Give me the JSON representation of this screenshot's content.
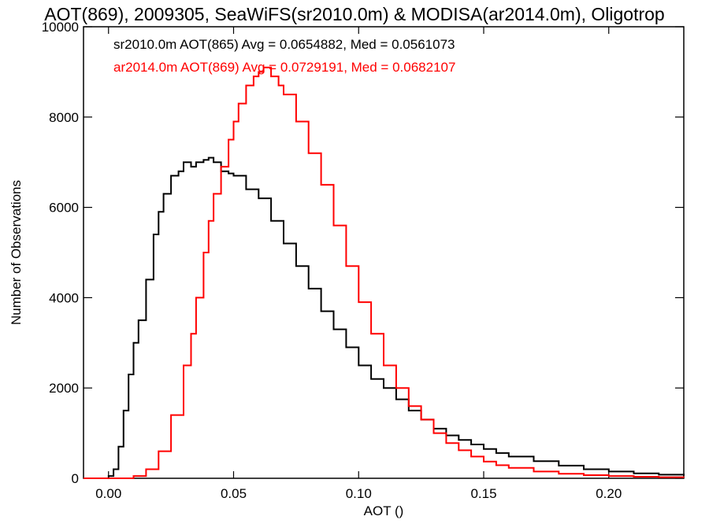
{
  "chart_data": {
    "type": "line",
    "title": "AOT(869), 2009305, SeaWiFS(sr2010.0m) & MODISA(ar2014.0m), Oligotrop",
    "xlabel": "AOT ()",
    "ylabel": "Number of Observations",
    "xlim": [
      -0.01,
      0.23
    ],
    "ylim": [
      0,
      10000
    ],
    "xticks": [
      0.0,
      0.05,
      0.1,
      0.15,
      0.2
    ],
    "xtick_labels": [
      "0.00",
      "0.05",
      "0.10",
      "0.15",
      "0.20"
    ],
    "yticks": [
      0,
      2000,
      4000,
      6000,
      8000,
      10000
    ],
    "ytick_labels": [
      "0",
      "2000",
      "4000",
      "6000",
      "8000",
      "10000"
    ],
    "step": true,
    "grid": false,
    "annotations": [
      {
        "text": "sr2010.0m AOT(865) Avg = 0.0654882, Med = 0.0561073",
        "color": "#000000"
      },
      {
        "text": "ar2014.0m AOT(869) Avg = 0.0729191, Med = 0.0682107",
        "color": "#ff0000"
      }
    ],
    "series": [
      {
        "color": "#000000",
        "x": [
          -0.01,
          -0.005,
          0.0,
          0.002,
          0.004,
          0.006,
          0.008,
          0.01,
          0.012,
          0.015,
          0.018,
          0.02,
          0.022,
          0.025,
          0.028,
          0.03,
          0.033,
          0.035,
          0.038,
          0.04,
          0.042,
          0.045,
          0.048,
          0.05,
          0.055,
          0.06,
          0.065,
          0.07,
          0.075,
          0.08,
          0.085,
          0.09,
          0.095,
          0.1,
          0.105,
          0.11,
          0.115,
          0.12,
          0.125,
          0.13,
          0.135,
          0.14,
          0.145,
          0.15,
          0.155,
          0.16,
          0.17,
          0.18,
          0.19,
          0.2,
          0.21,
          0.22,
          0.23
        ],
        "y": [
          0,
          0,
          50,
          200,
          700,
          1500,
          2300,
          3000,
          3500,
          4400,
          5400,
          5900,
          6300,
          6700,
          6800,
          7000,
          6900,
          7000,
          7050,
          7100,
          7000,
          6800,
          6750,
          6700,
          6400,
          6200,
          5700,
          5200,
          4700,
          4200,
          3700,
          3300,
          2900,
          2500,
          2200,
          2000,
          1750,
          1500,
          1300,
          1100,
          950,
          850,
          750,
          650,
          560,
          480,
          380,
          280,
          200,
          150,
          110,
          80,
          60
        ]
      },
      {
        "color": "#ff0000",
        "x": [
          -0.01,
          0.005,
          0.01,
          0.015,
          0.02,
          0.025,
          0.03,
          0.033,
          0.035,
          0.038,
          0.04,
          0.042,
          0.045,
          0.048,
          0.05,
          0.052,
          0.055,
          0.058,
          0.06,
          0.062,
          0.065,
          0.068,
          0.07,
          0.075,
          0.08,
          0.085,
          0.09,
          0.095,
          0.1,
          0.105,
          0.11,
          0.115,
          0.12,
          0.125,
          0.13,
          0.135,
          0.14,
          0.145,
          0.15,
          0.155,
          0.16,
          0.17,
          0.18,
          0.19,
          0.2,
          0.21,
          0.22,
          0.23
        ],
        "y": [
          0,
          0,
          50,
          200,
          600,
          1400,
          2500,
          3200,
          4000,
          5000,
          5700,
          6300,
          6900,
          7500,
          7900,
          8300,
          8700,
          8900,
          9000,
          9100,
          8900,
          8700,
          8500,
          7900,
          7200,
          6500,
          5600,
          4700,
          3900,
          3200,
          2500,
          2000,
          1600,
          1300,
          1000,
          780,
          620,
          480,
          370,
          290,
          230,
          150,
          100,
          70,
          50,
          35,
          25,
          20
        ]
      }
    ]
  }
}
